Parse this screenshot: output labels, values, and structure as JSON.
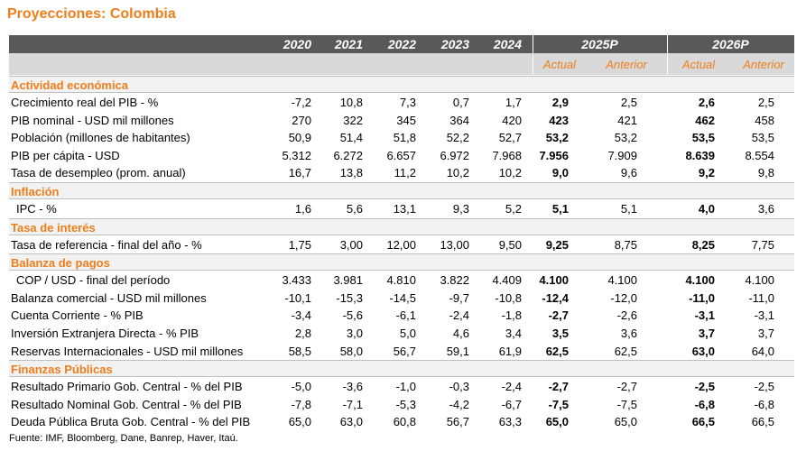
{
  "title": "Proyecciones: Colombia",
  "header": {
    "years": [
      "2020",
      "2021",
      "2022",
      "2023",
      "2024"
    ],
    "proj": [
      "2025P",
      "2026P"
    ],
    "sub": [
      "Actual",
      "Anterior",
      "Actual",
      "Anterior"
    ]
  },
  "sections": [
    {
      "label": "Actividad económica",
      "rows": [
        {
          "label": "Crecimiento real del PIB - %",
          "values": [
            "-7,2",
            "10,8",
            "7,3",
            "0,7",
            "1,7",
            "2,9",
            "2,5",
            "2,6",
            "2,5"
          ]
        },
        {
          "label": "PIB nominal - USD mil millones",
          "values": [
            "270",
            "322",
            "345",
            "364",
            "420",
            "423",
            "421",
            "462",
            "458"
          ]
        },
        {
          "label": "Población (millones de habitantes)",
          "values": [
            "50,9",
            "51,4",
            "51,8",
            "52,2",
            "52,7",
            "53,2",
            "53,2",
            "53,5",
            "53,5"
          ]
        },
        {
          "label": "PIB per cápita - USD",
          "values": [
            "5.312",
            "6.272",
            "6.657",
            "6.972",
            "7.968",
            "7.956",
            "7.909",
            "8.639",
            "8.554"
          ]
        },
        {
          "label": "Tasa de desempleo (prom. anual)",
          "values": [
            "16,7",
            "13,8",
            "11,2",
            "10,2",
            "10,2",
            "9,0",
            "9,6",
            "9,2",
            "9,8"
          ]
        }
      ]
    },
    {
      "label": "Inflación",
      "rows": [
        {
          "label": "IPC - %",
          "values": [
            "1,6",
            "5,6",
            "13,1",
            "9,3",
            "5,2",
            "5,1",
            "5,1",
            "4,0",
            "3,6"
          ]
        }
      ]
    },
    {
      "label": "Tasa de interés",
      "rows": [
        {
          "label": "Tasa de referencia  - final del año - %",
          "values": [
            "1,75",
            "3,00",
            "12,00",
            "13,00",
            "9,50",
            "9,25",
            "8,75",
            "8,25",
            "7,75"
          ]
        }
      ]
    },
    {
      "label": "Balanza de pagos",
      "rows": [
        {
          "label": "COP / USD  - final del período",
          "values": [
            "3.433",
            "3.981",
            "4.810",
            "3.822",
            "4.409",
            "4.100",
            "4.100",
            "4.100",
            "4.100"
          ]
        },
        {
          "label": "Balanza comercial - USD mil millones",
          "values": [
            "-10,1",
            "-15,3",
            "-14,5",
            "-9,7",
            "-10,8",
            "-12,4",
            "-12,0",
            "-11,0",
            "-11,0"
          ]
        },
        {
          "label": "Cuenta Corriente - % PIB",
          "values": [
            "-3,4",
            "-5,6",
            "-6,1",
            "-2,4",
            "-1,8",
            "-2,7",
            "-2,6",
            "-3,1",
            "-3,1"
          ]
        },
        {
          "label": "Inversión Extranjera Directa - % PIB",
          "values": [
            "2,8",
            "3,0",
            "5,0",
            "4,6",
            "3,4",
            "3,5",
            "3,6",
            "3,7",
            "3,7"
          ]
        },
        {
          "label": "Reservas Internacionales - USD mil millones",
          "values": [
            "58,5",
            "58,0",
            "56,7",
            "59,1",
            "61,9",
            "62,5",
            "62,5",
            "63,0",
            "64,0"
          ]
        }
      ]
    },
    {
      "label": "Finanzas Públicas",
      "rows": [
        {
          "label": "Resultado Primario Gob. Central - % del PIB",
          "values": [
            "-5,0",
            "-3,6",
            "-1,0",
            "-0,3",
            "-2,4",
            "-2,7",
            "-2,7",
            "-2,5",
            "-2,5"
          ]
        },
        {
          "label": "Resultado Nominal Gob. Central - % del PIB",
          "values": [
            "-7,8",
            "-7,1",
            "-5,3",
            "-4,2",
            "-6,7",
            "-7,5",
            "-7,5",
            "-6,8",
            "-6,8"
          ]
        },
        {
          "label": "Deuda Pública Bruta Gob. Central - % del PIB",
          "values": [
            "65,0",
            "63,0",
            "60,8",
            "56,7",
            "63,3",
            "65,0",
            "65,0",
            "66,5",
            "66,5"
          ]
        }
      ]
    }
  ],
  "source": "Fuente: IMF, Bloomberg, Dane, Banrep, Haver, Itaú."
}
